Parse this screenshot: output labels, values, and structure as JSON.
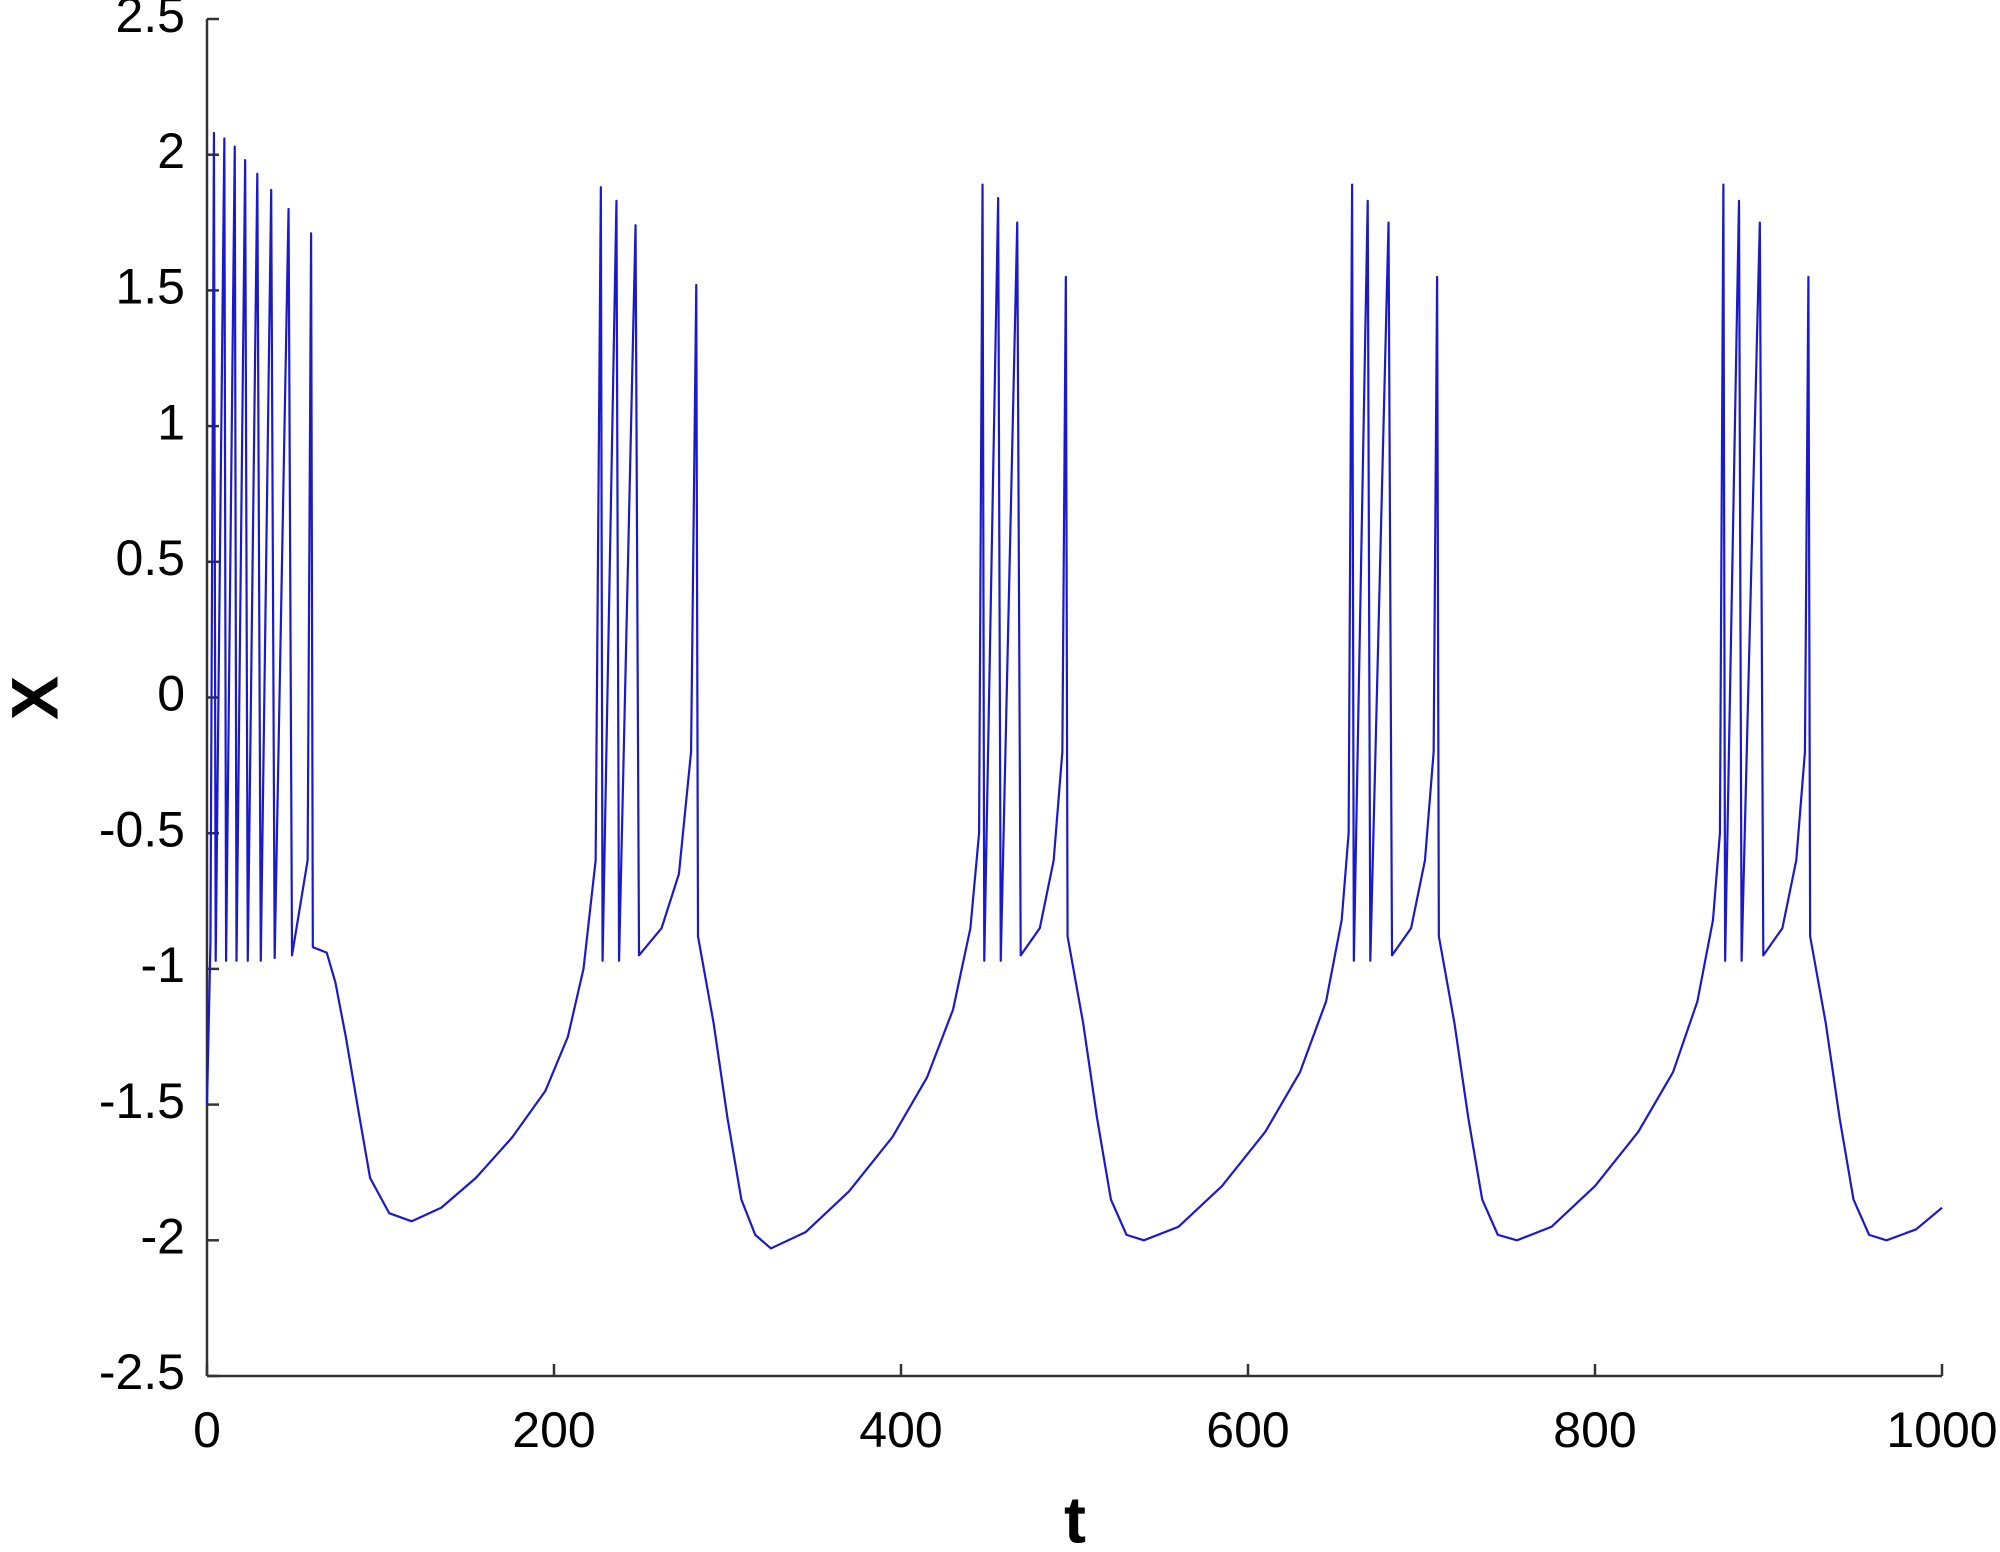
{
  "chart_data": {
    "type": "line",
    "xlabel": "t",
    "ylabel": "X",
    "x": [
      0,
      2,
      4,
      5,
      10,
      11,
      16,
      17,
      22,
      23.5,
      29,
      31,
      37,
      39,
      47,
      49,
      58,
      60,
      61,
      69,
      74,
      80,
      88,
      94,
      105,
      118,
      135,
      155,
      176,
      195,
      208,
      217,
      224,
      227,
      228,
      236,
      237.5,
      247,
      249,
      262,
      272,
      279,
      282,
      283,
      292,
      300,
      308,
      316,
      325,
      345,
      370,
      395,
      415,
      430,
      440,
      445,
      447,
      448,
      456,
      457.5,
      467,
      469,
      480,
      488,
      493,
      495,
      496,
      505,
      513,
      521,
      530,
      540,
      560,
      585,
      610,
      630,
      645,
      654,
      658,
      660,
      661,
      669,
      670.5,
      681,
      683,
      694,
      702,
      707,
      709,
      710,
      719,
      727,
      735,
      744,
      755,
      775,
      800,
      825,
      845,
      859,
      868,
      872,
      874,
      875,
      883,
      884.5,
      895,
      897,
      908,
      916,
      921,
      923,
      924,
      933,
      941,
      949,
      958,
      968,
      985,
      1000
    ],
    "series": [
      {
        "name": "X",
        "color": "#1a1acc",
        "values": [
          -1.5,
          -0.9,
          2.08,
          -0.97,
          2.06,
          -0.97,
          2.03,
          -0.97,
          1.98,
          -0.97,
          1.93,
          -0.97,
          1.87,
          -0.96,
          1.8,
          -0.95,
          -0.6,
          1.71,
          -0.92,
          -0.94,
          -1.05,
          -1.25,
          -1.55,
          -1.77,
          -1.9,
          -1.93,
          -1.88,
          -1.77,
          -1.62,
          -1.45,
          -1.25,
          -1.0,
          -0.6,
          1.88,
          -0.97,
          1.83,
          -0.97,
          1.74,
          -0.95,
          -0.85,
          -0.65,
          -0.2,
          1.52,
          -0.88,
          -1.2,
          -1.55,
          -1.85,
          -1.98,
          -2.03,
          -1.97,
          -1.82,
          -1.62,
          -1.4,
          -1.15,
          -0.85,
          -0.5,
          1.89,
          -0.97,
          1.84,
          -0.97,
          1.75,
          -0.95,
          -0.85,
          -0.6,
          -0.2,
          1.55,
          -0.88,
          -1.2,
          -1.55,
          -1.85,
          -1.98,
          -2.0,
          -1.95,
          -1.8,
          -1.6,
          -1.38,
          -1.12,
          -0.82,
          -0.5,
          1.89,
          -0.97,
          1.83,
          -0.97,
          1.75,
          -0.95,
          -0.85,
          -0.6,
          -0.2,
          1.55,
          -0.88,
          -1.2,
          -1.55,
          -1.85,
          -1.98,
          -2.0,
          -1.95,
          -1.8,
          -1.6,
          -1.38,
          -1.12,
          -0.82,
          -0.5,
          1.89,
          -0.97,
          1.83,
          -0.97,
          1.75,
          -0.95,
          -0.85,
          -0.6,
          -0.2,
          1.55,
          -0.88,
          -1.2,
          -1.55,
          -1.85,
          -1.98,
          -2.0,
          -1.96,
          -1.88
        ]
      }
    ],
    "xlim": [
      0,
      1000
    ],
    "xticks": [
      0,
      200,
      400,
      600,
      800,
      1000
    ],
    "ylim": [
      -2.5,
      2.5
    ],
    "yticks": [
      -2.5,
      -2,
      -1.5,
      -1,
      -0.5,
      0,
      0.5,
      1,
      1.5,
      2,
      2.5
    ],
    "grid": false
  }
}
